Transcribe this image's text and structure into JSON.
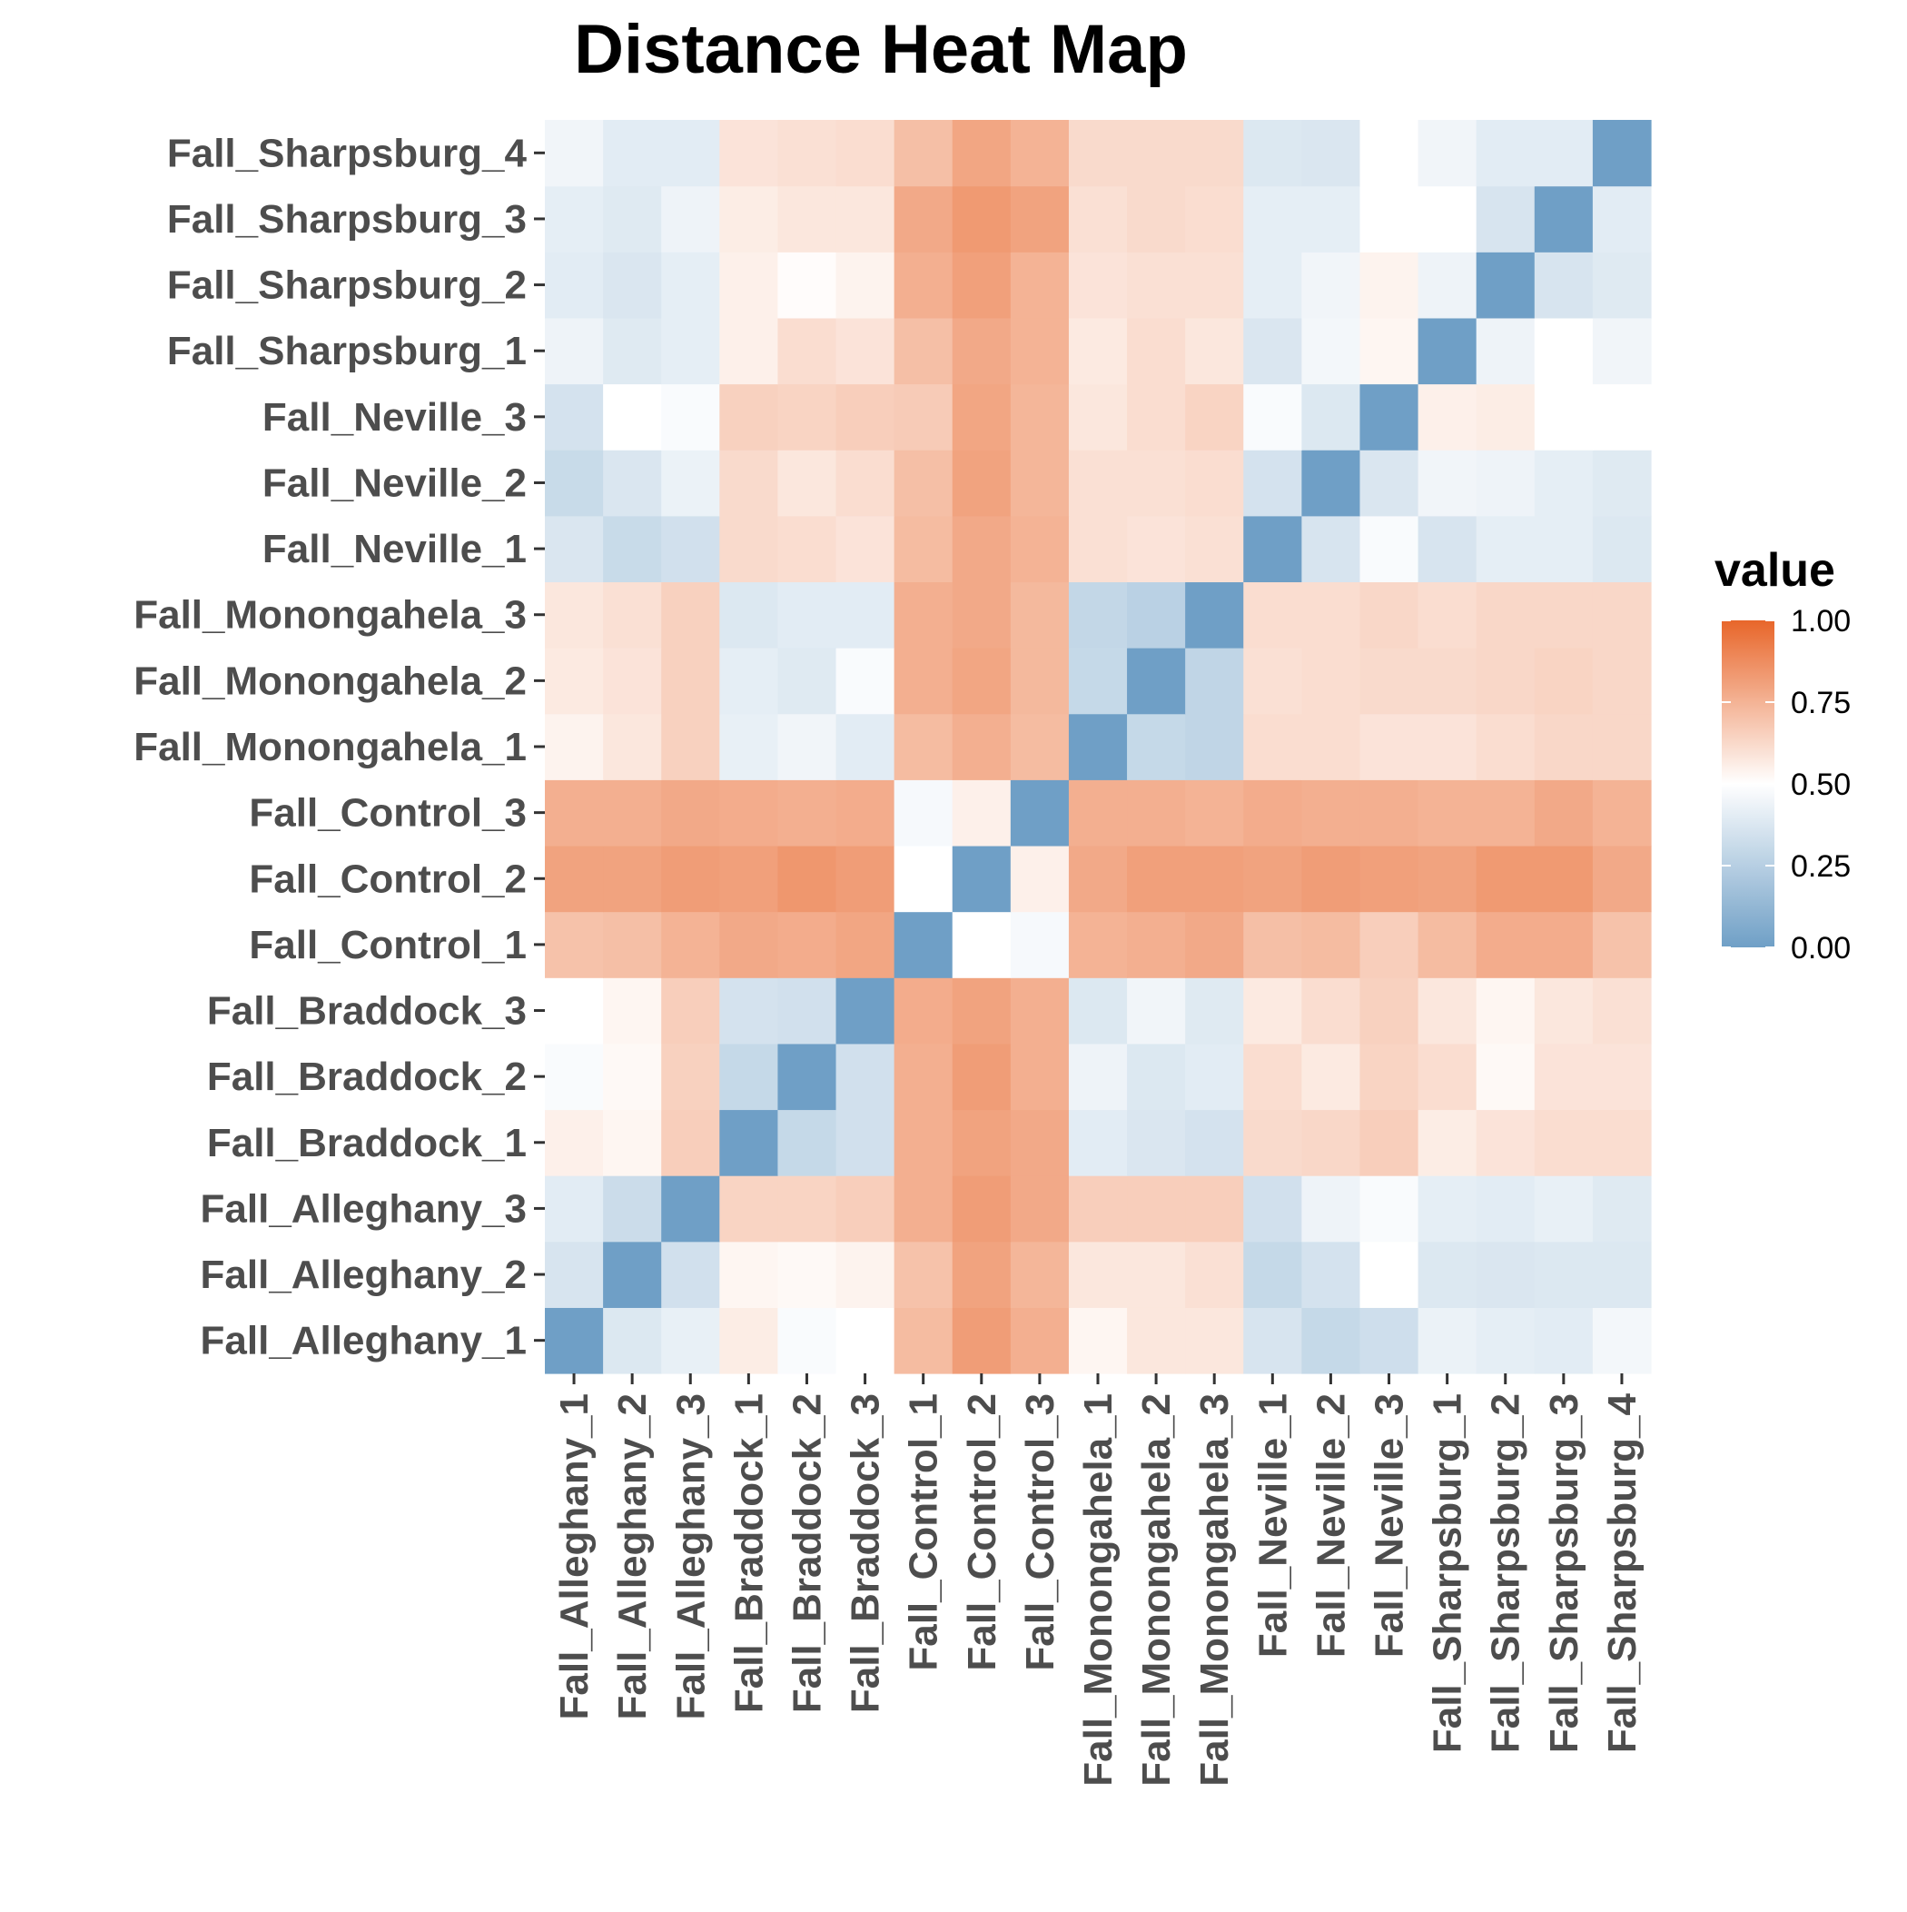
{
  "chart_data": {
    "type": "heatmap",
    "title": "Distance Heat Map",
    "xlabel": "",
    "ylabel": "",
    "x_labels": [
      "Fall_Alleghany_1",
      "Fall_Alleghany_2",
      "Fall_Alleghany_3",
      "Fall_Braddock_1",
      "Fall_Braddock_2",
      "Fall_Braddock_3",
      "Fall_Control_1",
      "Fall_Control_2",
      "Fall_Control_3",
      "Fall_Monongahela_1",
      "Fall_Monongahela_2",
      "Fall_Monongahela_3",
      "Fall_Neville_1",
      "Fall_Neville_2",
      "Fall_Neville_3",
      "Fall_Sharpsburg_1",
      "Fall_Sharpsburg_2",
      "Fall_Sharpsburg_3",
      "Fall_Sharpsburg_4"
    ],
    "y_labels": [
      "Fall_Alleghany_1",
      "Fall_Alleghany_2",
      "Fall_Alleghany_3",
      "Fall_Braddock_1",
      "Fall_Braddock_2",
      "Fall_Braddock_3",
      "Fall_Control_1",
      "Fall_Control_2",
      "Fall_Control_3",
      "Fall_Monongahela_1",
      "Fall_Monongahela_2",
      "Fall_Monongahela_3",
      "Fall_Neville_1",
      "Fall_Neville_2",
      "Fall_Neville_3",
      "Fall_Sharpsburg_1",
      "Fall_Sharpsburg_2",
      "Fall_Sharpsburg_3"
    ],
    "row_labels_note_unused": "",
    "rows_bottom_to_top": [
      [
        0.0,
        0.38,
        0.42,
        0.56,
        0.48,
        0.5,
        0.72,
        0.82,
        0.76,
        0.53,
        0.58,
        0.58,
        0.36,
        0.3,
        0.33,
        0.43,
        0.41,
        0.4,
        0.46
      ],
      [
        0.36,
        0.0,
        0.34,
        0.53,
        0.52,
        0.54,
        0.7,
        0.8,
        0.74,
        0.58,
        0.58,
        0.6,
        0.3,
        0.35,
        0.5,
        0.38,
        0.37,
        0.38,
        0.38
      ],
      [
        0.4,
        0.32,
        0.0,
        0.64,
        0.64,
        0.66,
        0.76,
        0.82,
        0.78,
        0.66,
        0.66,
        0.66,
        0.34,
        0.44,
        0.48,
        0.41,
        0.4,
        0.42,
        0.39
      ],
      [
        0.55,
        0.53,
        0.66,
        0.0,
        0.3,
        0.34,
        0.76,
        0.8,
        0.78,
        0.4,
        0.37,
        0.35,
        0.62,
        0.63,
        0.66,
        0.56,
        0.59,
        0.61,
        0.61
      ],
      [
        0.48,
        0.52,
        0.65,
        0.3,
        0.0,
        0.34,
        0.76,
        0.82,
        0.76,
        0.44,
        0.38,
        0.4,
        0.61,
        0.57,
        0.64,
        0.61,
        0.52,
        0.59,
        0.59
      ],
      [
        0.5,
        0.53,
        0.66,
        0.35,
        0.34,
        0.0,
        0.77,
        0.8,
        0.76,
        0.38,
        0.45,
        0.39,
        0.57,
        0.61,
        0.65,
        0.58,
        0.53,
        0.58,
        0.6
      ],
      [
        0.7,
        0.71,
        0.75,
        0.78,
        0.77,
        0.79,
        0.0,
        0.5,
        0.47,
        0.75,
        0.76,
        0.78,
        0.71,
        0.72,
        0.66,
        0.72,
        0.77,
        0.77,
        0.7
      ],
      [
        0.8,
        0.8,
        0.82,
        0.81,
        0.84,
        0.82,
        0.5,
        0.0,
        0.55,
        0.78,
        0.81,
        0.81,
        0.8,
        0.82,
        0.81,
        0.8,
        0.83,
        0.83,
        0.78
      ],
      [
        0.76,
        0.76,
        0.78,
        0.77,
        0.76,
        0.77,
        0.47,
        0.55,
        0.0,
        0.76,
        0.76,
        0.75,
        0.77,
        0.76,
        0.76,
        0.75,
        0.75,
        0.78,
        0.75
      ],
      [
        0.54,
        0.58,
        0.65,
        0.42,
        0.45,
        0.4,
        0.72,
        0.76,
        0.72,
        0.0,
        0.3,
        0.28,
        0.61,
        0.61,
        0.59,
        0.59,
        0.61,
        0.63,
        0.63
      ],
      [
        0.57,
        0.59,
        0.65,
        0.41,
        0.39,
        0.48,
        0.76,
        0.79,
        0.73,
        0.3,
        0.0,
        0.28,
        0.6,
        0.61,
        0.62,
        0.62,
        0.63,
        0.64,
        0.63
      ],
      [
        0.58,
        0.6,
        0.65,
        0.38,
        0.4,
        0.4,
        0.76,
        0.78,
        0.73,
        0.29,
        0.26,
        0.0,
        0.61,
        0.61,
        0.63,
        0.61,
        0.63,
        0.63,
        0.63
      ],
      [
        0.37,
        0.31,
        0.34,
        0.62,
        0.61,
        0.59,
        0.72,
        0.78,
        0.75,
        0.6,
        0.59,
        0.6,
        0.0,
        0.36,
        0.48,
        0.36,
        0.41,
        0.41,
        0.38
      ],
      [
        0.31,
        0.37,
        0.43,
        0.62,
        0.58,
        0.61,
        0.71,
        0.8,
        0.74,
        0.6,
        0.6,
        0.61,
        0.35,
        0.0,
        0.37,
        0.45,
        0.44,
        0.41,
        0.39
      ],
      [
        0.35,
        0.5,
        0.48,
        0.65,
        0.64,
        0.66,
        0.67,
        0.79,
        0.74,
        0.58,
        0.61,
        0.64,
        0.48,
        0.38,
        0.0,
        0.55,
        0.56,
        0.5,
        0.5
      ],
      [
        0.44,
        0.39,
        0.41,
        0.55,
        0.61,
        0.59,
        0.71,
        0.78,
        0.75,
        0.57,
        0.61,
        0.58,
        0.37,
        0.46,
        0.53,
        0.0,
        0.44,
        0.5,
        0.45
      ],
      [
        0.4,
        0.37,
        0.41,
        0.55,
        0.51,
        0.54,
        0.76,
        0.81,
        0.75,
        0.59,
        0.6,
        0.6,
        0.41,
        0.45,
        0.54,
        0.44,
        0.0,
        0.36,
        0.39
      ],
      [
        0.41,
        0.39,
        0.44,
        0.56,
        0.58,
        0.58,
        0.78,
        0.83,
        0.8,
        0.6,
        0.62,
        0.61,
        0.41,
        0.41,
        0.5,
        0.5,
        0.36,
        0.0,
        0.4
      ],
      [
        0.45,
        0.4,
        0.4,
        0.59,
        0.6,
        0.61,
        0.71,
        0.79,
        0.75,
        0.62,
        0.62,
        0.62,
        0.38,
        0.37,
        0.5,
        0.45,
        0.4,
        0.4,
        0.0
      ]
    ],
    "y_labels_full": [
      "Fall_Alleghany_1",
      "Fall_Alleghany_2",
      "Fall_Alleghany_3",
      "Fall_Braddock_1",
      "Fall_Braddock_2",
      "Fall_Braddock_3",
      "Fall_Control_1",
      "Fall_Control_2",
      "Fall_Control_3",
      "Fall_Monongahela_1",
      "Fall_Monongahela_2",
      "Fall_Monongahela_3",
      "Fall_Neville_1",
      "Fall_Neville_2",
      "Fall_Neville_3",
      "Fall_Sharpsburg_1",
      "Fall_Sharpsburg_2",
      "Fall_Sharpsburg_3",
      "Fall_Sharpsburg_4"
    ],
    "legend": {
      "title": "value",
      "position": "right",
      "ticks": [
        "1.00",
        "0.75",
        "0.50",
        "0.25",
        "0.00"
      ],
      "tick_values": [
        1.0,
        0.75,
        0.5,
        0.25,
        0.0
      ],
      "low_color": "#6f9fc6",
      "mid_color": "#ffffff",
      "high_color": "#e8662a",
      "midpoint": 0.5,
      "range": [
        0,
        1
      ]
    },
    "grid": false
  }
}
